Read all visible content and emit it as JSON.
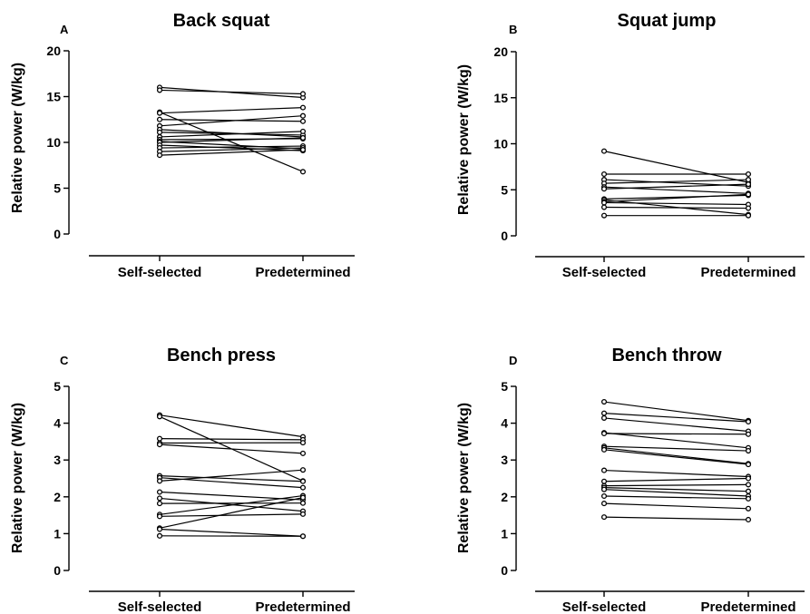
{
  "chart_data": [
    {
      "panel": "A",
      "type": "line",
      "title": "Back squat",
      "ylabel": "Relative power (W/kg)",
      "xlabel": "",
      "categories": [
        "Self-selected",
        "Predetermined"
      ],
      "ylim": [
        0,
        20
      ],
      "yticks": [
        0,
        5,
        10,
        15,
        20
      ],
      "grid": false,
      "legend": "none",
      "series": [
        {
          "values": [
            16.0,
            14.9
          ]
        },
        {
          "values": [
            15.7,
            15.3
          ]
        },
        {
          "values": [
            13.3,
            6.8
          ]
        },
        {
          "values": [
            13.2,
            13.8
          ]
        },
        {
          "values": [
            12.5,
            12.3
          ]
        },
        {
          "values": [
            11.8,
            12.9
          ]
        },
        {
          "values": [
            11.4,
            10.6
          ]
        },
        {
          "values": [
            11.1,
            10.8
          ]
        },
        {
          "values": [
            10.6,
            11.2
          ]
        },
        {
          "values": [
            10.3,
            10.4
          ]
        },
        {
          "values": [
            10.1,
            9.3
          ]
        },
        {
          "values": [
            10.0,
            10.5
          ]
        },
        {
          "values": [
            9.7,
            9.1
          ]
        },
        {
          "values": [
            9.4,
            9.6
          ]
        },
        {
          "values": [
            9.0,
            9.4
          ]
        },
        {
          "values": [
            8.6,
            9.2
          ]
        }
      ]
    },
    {
      "panel": "B",
      "type": "line",
      "title": "Squat jump",
      "ylabel": "Relative power (W/kg)",
      "xlabel": "",
      "categories": [
        "Self-selected",
        "Predetermined"
      ],
      "ylim": [
        0,
        20
      ],
      "yticks": [
        0,
        5,
        10,
        15,
        20
      ],
      "grid": false,
      "legend": "none",
      "series": [
        {
          "values": [
            9.2,
            5.8
          ]
        },
        {
          "values": [
            6.7,
            6.7
          ]
        },
        {
          "values": [
            6.1,
            5.4
          ]
        },
        {
          "values": [
            5.7,
            6.1
          ]
        },
        {
          "values": [
            5.3,
            4.6
          ]
        },
        {
          "values": [
            5.1,
            5.6
          ]
        },
        {
          "values": [
            4.0,
            4.4
          ]
        },
        {
          "values": [
            3.9,
            2.3
          ]
        },
        {
          "values": [
            3.7,
            4.5
          ]
        },
        {
          "values": [
            3.6,
            3.4
          ]
        },
        {
          "values": [
            3.1,
            3.0
          ]
        },
        {
          "values": [
            2.2,
            2.2
          ]
        }
      ]
    },
    {
      "panel": "C",
      "type": "line",
      "title": "Bench press",
      "ylabel": "Relative power (W/kg)",
      "xlabel": "",
      "categories": [
        "Self-selected",
        "Predetermined"
      ],
      "ylim": [
        0,
        5
      ],
      "yticks": [
        0,
        1,
        2,
        3,
        4,
        5
      ],
      "grid": false,
      "legend": "none",
      "series": [
        {
          "values": [
            4.22,
            3.63
          ]
        },
        {
          "values": [
            4.18,
            2.43
          ]
        },
        {
          "values": [
            3.58,
            3.55
          ]
        },
        {
          "values": [
            3.46,
            3.47
          ]
        },
        {
          "values": [
            3.42,
            3.18
          ]
        },
        {
          "values": [
            2.57,
            2.42
          ]
        },
        {
          "values": [
            2.52,
            2.25
          ]
        },
        {
          "values": [
            2.43,
            2.73
          ]
        },
        {
          "values": [
            2.13,
            1.92
          ]
        },
        {
          "values": [
            1.96,
            1.61
          ]
        },
        {
          "values": [
            1.82,
            1.83
          ]
        },
        {
          "values": [
            1.52,
            2.03
          ]
        },
        {
          "values": [
            1.47,
            1.53
          ]
        },
        {
          "values": [
            1.15,
            1.98
          ]
        },
        {
          "values": [
            1.12,
            0.93
          ]
        },
        {
          "values": [
            0.94,
            0.93
          ]
        }
      ]
    },
    {
      "panel": "D",
      "type": "line",
      "title": "Bench throw",
      "ylabel": "Relative power (W/kg)",
      "xlabel": "",
      "categories": [
        "Self-selected",
        "Predetermined"
      ],
      "ylim": [
        0,
        5
      ],
      "yticks": [
        0,
        1,
        2,
        3,
        4,
        5
      ],
      "grid": false,
      "legend": "none",
      "series": [
        {
          "values": [
            4.58,
            4.07
          ]
        },
        {
          "values": [
            4.27,
            4.04
          ]
        },
        {
          "values": [
            4.14,
            3.78
          ]
        },
        {
          "values": [
            3.74,
            3.33
          ]
        },
        {
          "values": [
            3.72,
            3.7
          ]
        },
        {
          "values": [
            3.37,
            3.25
          ]
        },
        {
          "values": [
            3.33,
            2.9
          ]
        },
        {
          "values": [
            3.28,
            2.88
          ]
        },
        {
          "values": [
            2.72,
            2.55
          ]
        },
        {
          "values": [
            2.42,
            2.5
          ]
        },
        {
          "values": [
            2.3,
            2.33
          ]
        },
        {
          "values": [
            2.25,
            2.15
          ]
        },
        {
          "values": [
            2.2,
            2.02
          ]
        },
        {
          "values": [
            2.02,
            1.95
          ]
        },
        {
          "values": [
            1.82,
            1.68
          ]
        },
        {
          "values": [
            1.45,
            1.38
          ]
        }
      ]
    }
  ]
}
